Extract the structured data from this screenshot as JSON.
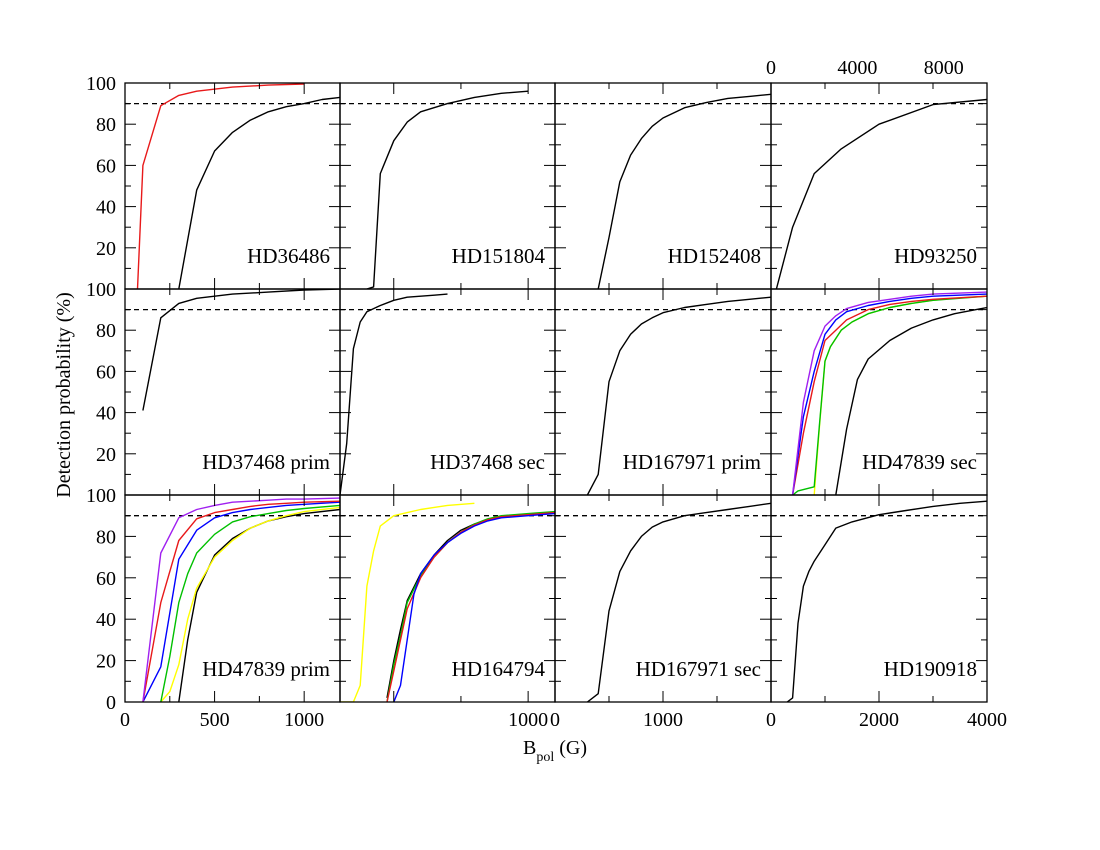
{
  "chart_data": {
    "type": "line",
    "ylabel": "Detection probability (%)",
    "xlabel": {
      "main": "B",
      "sub": "pol",
      "unit": " (G)"
    },
    "ylim": [
      0,
      100
    ],
    "y_ticks": [
      "0",
      "20",
      "40",
      "60",
      "80",
      "100"
    ],
    "threshold": 90,
    "columns": [
      {
        "xlim": [
          0,
          1200
        ],
        "ticks": [
          {
            "v": 0,
            "label": "0"
          },
          {
            "v": 500,
            "label": "500"
          },
          {
            "v": 1000,
            "label": "1000"
          }
        ]
      },
      {
        "xlim": [
          -400,
          1200
        ],
        "ticks": [
          {
            "v": 1000,
            "label": "1000"
          }
        ]
      },
      {
        "xlim": [
          0,
          2000
        ],
        "ticks": [
          {
            "v": 0,
            "label": "0"
          },
          {
            "v": 1000,
            "label": "1000"
          }
        ]
      },
      {
        "xlim": [
          0,
          4000
        ],
        "ticks": [
          {
            "v": 0,
            "label": "0"
          },
          {
            "v": 2000,
            "label": "2000"
          },
          {
            "v": 4000,
            "label": "4000"
          }
        ]
      }
    ],
    "top_axis": {
      "column": 3,
      "xlim": [
        0,
        10000
      ],
      "ticks": [
        {
          "v": 0,
          "label": "0"
        },
        {
          "v": 4000,
          "label": "4000"
        },
        {
          "v": 8000,
          "label": "8000"
        }
      ]
    },
    "panels": [
      {
        "label": "HD36486",
        "row": 0,
        "col": 0,
        "series": [
          {
            "color": "#e8191a",
            "x": [
              70,
              100,
              200,
              300,
              400,
              600,
              800,
              1000
            ],
            "y": [
              0,
              60,
              89,
              94,
              96,
              98,
              99,
              99.5
            ]
          },
          {
            "color": "#000000",
            "x": [
              300,
              400,
              500,
              600,
              700,
              800,
              900,
              1000,
              1100,
              1200
            ],
            "y": [
              0,
              48,
              67,
              76,
              82,
              86,
              88.5,
              90,
              92,
              93
            ]
          }
        ]
      },
      {
        "label": "HD151804",
        "row": 0,
        "col": 1,
        "series": [
          {
            "color": "#000000",
            "x": [
              -200,
              -150,
              -100,
              0,
              100,
              200,
              400,
              600,
              800,
              1000
            ],
            "y": [
              0,
              1,
              56,
              72,
              81,
              86,
              90,
              93,
              95,
              96
            ]
          }
        ]
      },
      {
        "label": "HD152408",
        "row": 0,
        "col": 2,
        "series": [
          {
            "color": "#000000",
            "x": [
              400,
              500,
              600,
              700,
              800,
              900,
              1000,
              1200,
              1400,
              1600,
              1800,
              2000
            ],
            "y": [
              0,
              25,
              52,
              65,
              73,
              79,
              83,
              88,
              90.5,
              92.5,
              93.5,
              94.5
            ]
          }
        ]
      },
      {
        "label": "HD93250",
        "row": 0,
        "col": 3,
        "series": [
          {
            "color": "#000000",
            "x": [
              100,
              400,
              800,
              1300,
              2000,
              3000,
              4000,
              5000,
              6000,
              7000,
              8000,
              9000,
              10000
            ],
            "y": [
              0,
              30,
              56,
              68,
              80,
              89.5,
              92,
              93.5,
              94.5,
              95.5,
              96,
              96.5,
              97
            ]
          }
        ]
      },
      {
        "label": "HD37468 prim",
        "row": 1,
        "col": 0,
        "series": [
          {
            "color": "#000000",
            "x": [
              100,
              200,
              300,
              400,
              600,
              800,
              1000,
              1200
            ],
            "y": [
              41,
              86,
              93,
              95.5,
              97.5,
              98.5,
              99.5,
              100
            ]
          }
        ]
      },
      {
        "label": "HD37468 sec",
        "row": 1,
        "col": 1,
        "series": [
          {
            "color": "#000000",
            "x": [
              -400,
              -350,
              -300,
              -250,
              -200,
              -100,
              0,
              100,
              200,
              300,
              400
            ],
            "y": [
              0,
              25,
              71,
              84,
              89,
              92,
              94.5,
              96,
              96.5,
              97,
              97.5
            ]
          }
        ]
      },
      {
        "label": "HD167971 prim",
        "row": 1,
        "col": 2,
        "series": [
          {
            "color": "#000000",
            "x": [
              300,
              400,
              500,
              600,
              700,
              800,
              900,
              1000,
              1200,
              1400,
              1600,
              1800,
              2000
            ],
            "y": [
              0,
              10,
              55,
              70,
              78,
              83,
              86,
              88.5,
              91,
              92.5,
              94,
              95,
              96
            ]
          }
        ]
      },
      {
        "label": "HD47839 sec",
        "row": 1,
        "col": 3,
        "series": [
          {
            "color": "#000000",
            "x": [
              1200,
              1400,
              1600,
              1800,
              2200,
              2600,
              3000,
              3400,
              3800,
              4000
            ],
            "y": [
              0,
              32,
              56,
              66,
              75,
              81,
              85,
              88,
              90,
              91
            ]
          },
          {
            "color": "#ffff00",
            "x": [
              800,
              900,
              1000,
              1100,
              1300,
              1500,
              1800,
              2200,
              2600,
              3000,
              3400,
              4000
            ],
            "y": [
              0,
              34,
              65,
              72,
              80,
              84,
              88,
              91,
              93,
              94.5,
              95.5,
              96.5
            ]
          },
          {
            "color": "#00c000",
            "x": [
              400,
              500,
              800,
              900,
              1000,
              1100,
              1300,
              1500,
              1800,
              2200,
              2600,
              3000,
              4000
            ],
            "y": [
              0,
              2,
              4,
              35,
              65,
              72,
              80,
              84,
              88,
              91,
              93,
              94.5,
              96.5
            ]
          },
          {
            "color": "#e8191a",
            "x": [
              400,
              600,
              800,
              1000,
              1200,
              1400,
              1800,
              2200,
              2600,
              3000,
              4000
            ],
            "y": [
              0,
              30,
              55,
              75,
              80,
              85,
              90,
              92.5,
              94,
              95,
              96.5
            ]
          },
          {
            "color": "#0000ff",
            "x": [
              400,
              600,
              800,
              1000,
              1200,
              1400,
              1800,
              2200,
              2600,
              3000,
              4000
            ],
            "y": [
              0,
              38,
              60,
              78,
              85,
              89,
              92,
              94,
              95.5,
              96.5,
              97.5
            ]
          },
          {
            "color": "#a020f0",
            "x": [
              400,
              600,
              800,
              1000,
              1200,
              1400,
              1800,
              2200,
              2600,
              3000,
              4000
            ],
            "y": [
              0,
              45,
              70,
              82,
              87,
              90.5,
              93.5,
              95,
              96.5,
              97.5,
              98.5
            ]
          }
        ]
      },
      {
        "label": "HD47839 prim",
        "row": 2,
        "col": 0,
        "series": [
          {
            "color": "#000000",
            "x": [
              300,
              350,
              400,
              500,
              600,
              700,
              800,
              900,
              1000,
              1200
            ],
            "y": [
              0,
              30,
              53,
              71,
              79,
              84,
              87.5,
              89.5,
              91,
              93
            ]
          },
          {
            "color": "#ffff00",
            "x": [
              200,
              250,
              300,
              350,
              400,
              500,
              600,
              700,
              800,
              900,
              1000,
              1200
            ],
            "y": [
              0,
              5,
              18,
              40,
              55,
              70,
              78,
              84,
              87.5,
              90,
              92,
              94
            ]
          },
          {
            "color": "#00c000",
            "x": [
              200,
              250,
              300,
              350,
              400,
              500,
              600,
              700,
              800,
              900,
              1000,
              1200
            ],
            "y": [
              0,
              22,
              48,
              62,
              72,
              81,
              87,
              89.5,
              91,
              92.5,
              93.5,
              95
            ]
          },
          {
            "color": "#0000ff",
            "x": [
              100,
              200,
              300,
              400,
              500,
              600,
              700,
              800,
              900,
              1000,
              1200
            ],
            "y": [
              0,
              17,
              69,
              83,
              89,
              91.5,
              93,
              94,
              95,
              95.5,
              96.5
            ]
          },
          {
            "color": "#e8191a",
            "x": [
              100,
              200,
              300,
              400,
              500,
              600,
              700,
              800,
              900,
              1000,
              1200
            ],
            "y": [
              0,
              48,
              78,
              88.5,
              91.5,
              93,
              94.5,
              95.5,
              96,
              96.5,
              97
            ]
          },
          {
            "color": "#a020f0",
            "x": [
              100,
              200,
              300,
              400,
              500,
              600,
              700,
              800,
              900,
              1000,
              1200
            ],
            "y": [
              0,
              72,
              89,
              93,
              95,
              96.5,
              97,
              97.5,
              98,
              98,
              98.5
            ]
          }
        ]
      },
      {
        "label": "HD164794",
        "row": 2,
        "col": 1,
        "series": [
          {
            "color": "#ffff00",
            "x": [
              -400,
              -300,
              -250,
              -200,
              -150,
              -100,
              0,
              100,
              200,
              300,
              400,
              600
            ],
            "y": [
              0,
              0,
              8,
              56,
              73,
              85,
              90,
              91.5,
              93,
              94,
              95,
              96
            ]
          },
          {
            "color": "#000000",
            "x": [
              -50,
              0,
              50,
              100,
              200,
              300,
              400,
              500,
              600,
              700,
              800,
              1000,
              1200
            ],
            "y": [
              2,
              20,
              35,
              49,
              62,
              71,
              78,
              83,
              86,
              88,
              89.5,
              90.5,
              91.5
            ]
          },
          {
            "color": "#00c000",
            "x": [
              -50,
              0,
              50,
              100,
              200,
              300,
              400,
              500,
              600,
              700,
              800,
              1000,
              1200
            ],
            "y": [
              0,
              18,
              32,
              48,
              61,
              70,
              77,
              82,
              86,
              88.5,
              90,
              91,
              92
            ]
          },
          {
            "color": "#e8191a",
            "x": [
              -50,
              0,
              50,
              100,
              200,
              300,
              400,
              500,
              600,
              700,
              800,
              1000,
              1200
            ],
            "y": [
              0,
              15,
              30,
              45,
              60,
              70,
              77,
              82,
              85.5,
              88,
              89.5,
              90.5,
              91.5
            ]
          },
          {
            "color": "#0000ff",
            "x": [
              0,
              50,
              100,
              150,
              200,
              300,
              400,
              500,
              600,
              700,
              800,
              1000,
              1200
            ],
            "y": [
              0,
              8,
              30,
              52,
              62,
              71,
              77,
              81.5,
              85,
              87.5,
              89,
              90,
              91
            ]
          }
        ]
      },
      {
        "label": "HD167971 sec",
        "row": 2,
        "col": 2,
        "series": [
          {
            "color": "#000000",
            "x": [
              300,
              400,
              500,
              600,
              700,
              800,
              900,
              1000,
              1200,
              1400,
              1600,
              1800,
              2000
            ],
            "y": [
              0,
              4,
              44,
              63,
              73,
              80,
              84.5,
              87,
              90,
              91.5,
              93,
              94.5,
              96
            ]
          }
        ]
      },
      {
        "label": "HD190918",
        "row": 2,
        "col": 3,
        "series": [
          {
            "color": "#000000",
            "x": [
              300,
              400,
              500,
              600,
              700,
              800,
              1000,
              1200,
              1500,
              2000,
              2500,
              3000,
              3500,
              4000
            ],
            "y": [
              0,
              2,
              38,
              56,
              63,
              68,
              76,
              84,
              87,
              90.5,
              92.5,
              94.5,
              96,
              97
            ]
          }
        ]
      }
    ]
  }
}
